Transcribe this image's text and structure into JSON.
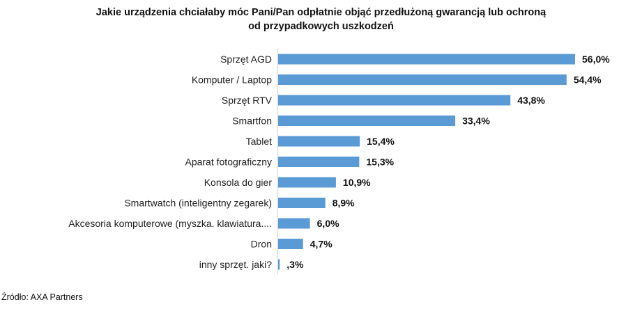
{
  "chart_data": {
    "type": "bar",
    "orientation": "horizontal",
    "title_line1": "Jakie urządzenia chciałaby  móc Pani/Pan odpłatnie objąć  przedłużoną gwarancją  lub ochroną",
    "title_line2": "od przypadkowych uszkodzeń",
    "categories": [
      "Sprzęt AGD",
      "Komputer / Laptop",
      "Sprzęt RTV",
      "Smartfon",
      "Tablet",
      "Aparat fotograficzny",
      "Konsola do gier",
      "Smartwatch (inteligentny zegarek)",
      "Akcesoria komputerowe (myszka. klawiatura....",
      "Dron",
      "inny sprzęt. jaki?"
    ],
    "values": [
      56.0,
      54.4,
      43.8,
      33.4,
      15.4,
      15.3,
      10.9,
      8.9,
      6.0,
      4.7,
      0.3
    ],
    "labels": [
      "56,0%",
      "54,4%",
      "43,8%",
      "33,4%",
      "15,4%",
      "15,3%",
      "10,9%",
      "8,9%",
      "6,0%",
      "4,7%",
      ",3%"
    ],
    "xlim": [
      0,
      56
    ],
    "grid": false,
    "bar_color": "#5b9bd5"
  },
  "source": "Źródło: AXA Partners"
}
